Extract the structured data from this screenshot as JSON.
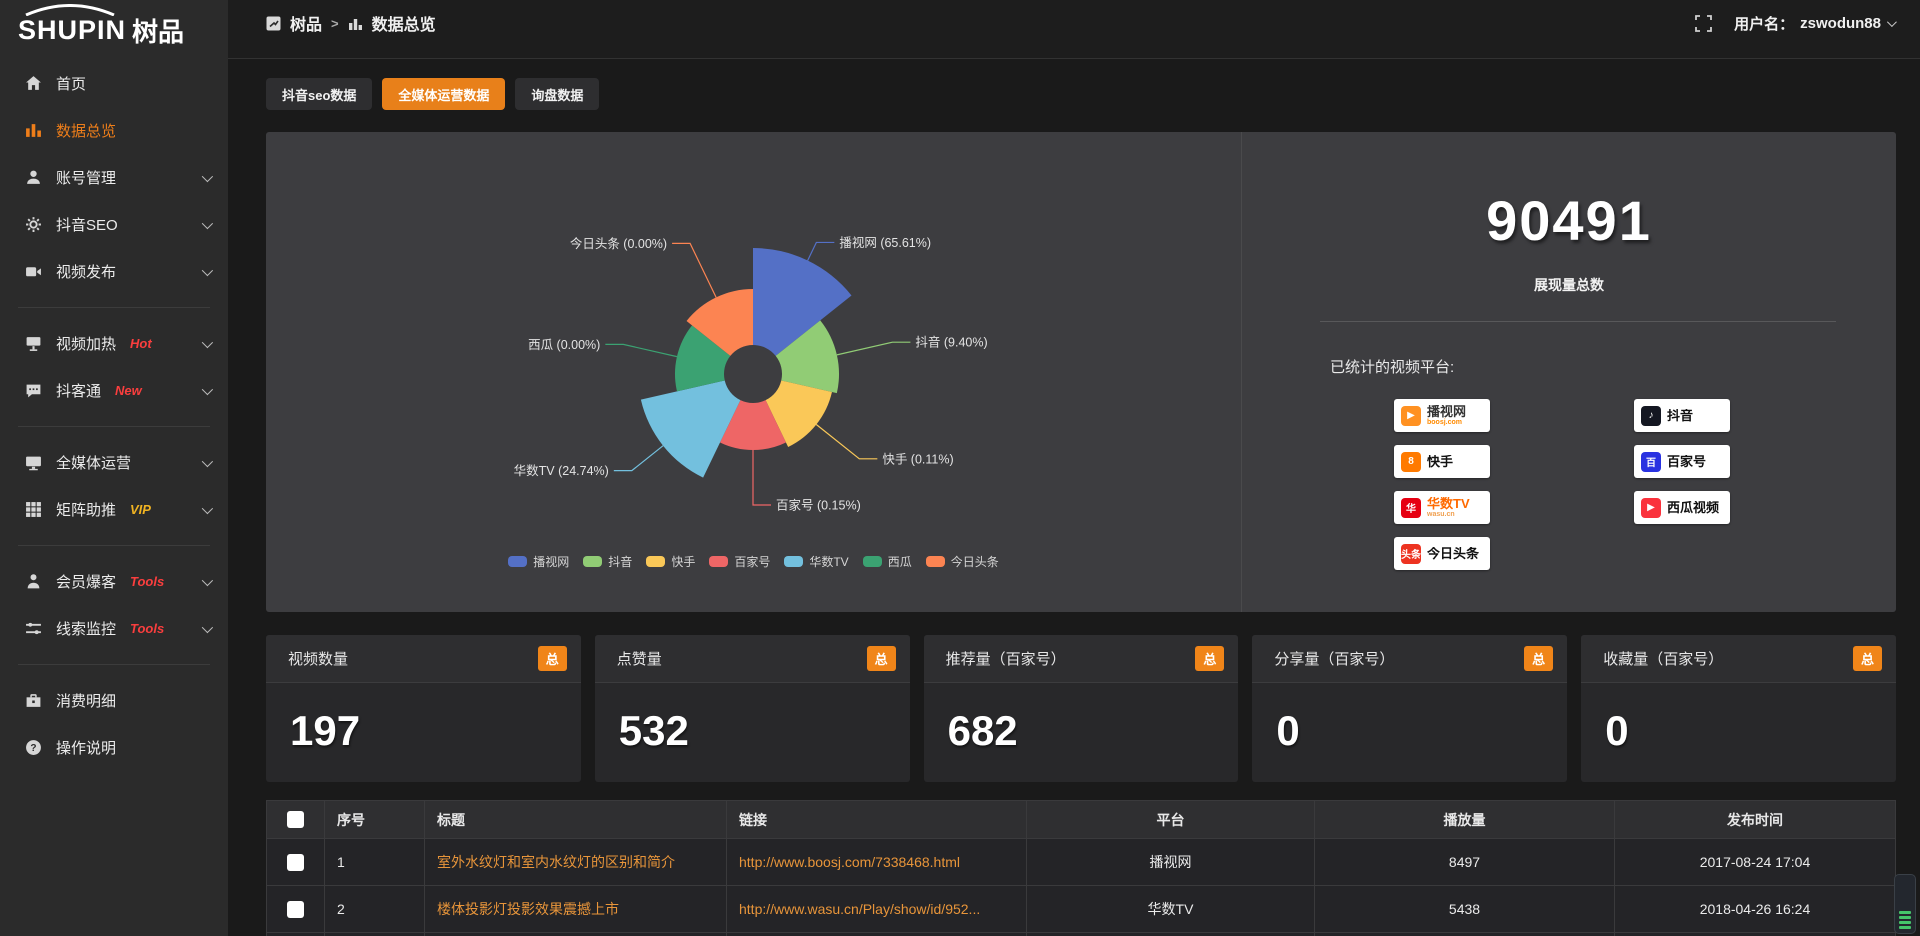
{
  "brand": {
    "name_en": "SHUPIN",
    "name_cn": "树品"
  },
  "topbar": {
    "breadcrumb_home": "树品",
    "breadcrumb_sep": ">",
    "breadcrumb_current": "数据总览",
    "username_label": "用户名：",
    "username": "zswodun88"
  },
  "sidebar": {
    "items": [
      {
        "label": "首页",
        "icon": "home-icon",
        "badge": "",
        "badge_color": ""
      },
      {
        "label": "数据总览",
        "icon": "bar-chart-icon",
        "badge": "",
        "badge_color": ""
      },
      {
        "label": "账号管理",
        "icon": "user-icon",
        "badge": "",
        "badge_color": ""
      },
      {
        "label": "抖音SEO",
        "icon": "gear-icon",
        "badge": "",
        "badge_color": ""
      },
      {
        "label": "视频发布",
        "icon": "video-icon",
        "badge": "",
        "badge_color": ""
      },
      {
        "label": "视频加热",
        "icon": "screen-icon",
        "badge": "Hot",
        "badge_color": "#fa3e3e"
      },
      {
        "label": "抖客通",
        "icon": "chat-icon",
        "badge": "New",
        "badge_color": "#fa3e3e"
      },
      {
        "label": "全媒体运营",
        "icon": "monitor-icon",
        "badge": "",
        "badge_color": ""
      },
      {
        "label": "矩阵助推",
        "icon": "grid-icon",
        "badge": "VIP",
        "badge_color": "#f0b322"
      },
      {
        "label": "会员爆客",
        "icon": "member-icon",
        "badge": "Tools",
        "badge_color": "#fa3e3e"
      },
      {
        "label": "线索监控",
        "icon": "sliders-icon",
        "badge": "Tools",
        "badge_color": "#fa3e3e"
      },
      {
        "label": "消费明细",
        "icon": "wallet-icon",
        "badge": "",
        "badge_color": ""
      },
      {
        "label": "操作说明",
        "icon": "help-icon",
        "badge": "",
        "badge_color": ""
      }
    ]
  },
  "tabs": [
    {
      "label": "抖音seo数据",
      "active": false
    },
    {
      "label": "全媒体运营数据",
      "active": true
    },
    {
      "label": "询盘数据",
      "active": false
    }
  ],
  "chart_data": {
    "type": "pie",
    "variant": "nightingale-rose",
    "labels": [
      "播视网",
      "抖音",
      "快手",
      "百家号",
      "华数TV",
      "西瓜",
      "今日头条"
    ],
    "values_pct": [
      65.61,
      9.4,
      0.11,
      0.15,
      24.74,
      0.0,
      0.0
    ],
    "colors": [
      "#5470c6",
      "#91cc75",
      "#fac858",
      "#ee6666",
      "#73c0de",
      "#3ba272",
      "#fc8452"
    ],
    "legend": [
      "播视网",
      "抖音",
      "快手",
      "百家号",
      "华数TV",
      "西瓜",
      "今日头条"
    ],
    "legend_position": "bottom",
    "label_format": "{name} ({value}%)",
    "equal_angle": true,
    "start_angle_deg": -90,
    "inner_radius_px": 29,
    "radius_px": [
      126,
      86,
      81,
      76,
      115,
      78,
      85
    ],
    "label_line_length": [
      20,
      57,
      55,
      55,
      40,
      55,
      60
    ],
    "label_line_length2": 18
  },
  "summary": {
    "total_value": "90491",
    "total_label": "展现量总数",
    "platforms_title": "已统计的视频平台:",
    "platforms": [
      {
        "name": "播视网",
        "sub": "boosj.com",
        "icon": "boosj-logo",
        "glyph": "▶",
        "icon_bg": "#ff9122",
        "icon_fg": "#ffffff",
        "name_color": "#333333",
        "sub_color": "#ff8a00"
      },
      {
        "name": "抖音",
        "sub": "",
        "icon": "douyin-logo",
        "glyph": "♪",
        "icon_bg": "#141722",
        "icon_fg": "#ffffff",
        "name_color": "#111111",
        "sub_color": "#888888"
      },
      {
        "name": "快手",
        "sub": "",
        "icon": "kuaishou-logo",
        "glyph": "8",
        "icon_bg": "#ff7a00",
        "icon_fg": "#ffffff",
        "name_color": "#111111",
        "sub_color": "#888888"
      },
      {
        "name": "百家号",
        "sub": "",
        "icon": "baijiahao-logo",
        "glyph": "百",
        "icon_bg": "#2932e1",
        "icon_fg": "#ffffff",
        "name_color": "#111111",
        "sub_color": "#888888"
      },
      {
        "name": "华数TV",
        "sub": "wasu.cn",
        "icon": "wasu-logo",
        "glyph": "华",
        "icon_bg": "#e60012",
        "icon_fg": "#ffffff",
        "name_color": "#ff6a00",
        "sub_color": "#f0a050"
      },
      {
        "name": "西瓜视频",
        "sub": "",
        "icon": "xigua-logo",
        "glyph": "▶",
        "icon_bg": "#fa323c",
        "icon_fg": "#ffffff",
        "name_color": "#111111",
        "sub_color": "#888888"
      },
      {
        "name": "今日头条",
        "sub": "",
        "icon": "toutiao-logo",
        "glyph": "头条",
        "icon_bg": "#ed3321",
        "icon_fg": "#ffffff",
        "name_color": "#111111",
        "sub_color": "#888888"
      }
    ]
  },
  "stat_cards": [
    {
      "label": "视频数量",
      "badge": "总",
      "value": "197"
    },
    {
      "label": "点赞量",
      "badge": "总",
      "value": "532"
    },
    {
      "label": "推荐量（百家号）",
      "badge": "总",
      "value": "682"
    },
    {
      "label": "分享量（百家号）",
      "badge": "总",
      "value": "0"
    },
    {
      "label": "收藏量（百家号）",
      "badge": "总",
      "value": "0"
    }
  ],
  "table": {
    "headers": [
      "序号",
      "标题",
      "链接",
      "平台",
      "播放量",
      "发布时间"
    ],
    "rows": [
      {
        "index": "1",
        "title": "室外水纹灯和室内水纹灯的区别和简介",
        "link": "http://www.boosj.com/7338468.html",
        "platform": "播视网",
        "plays": "8497",
        "time": "2017-08-24 17:04"
      },
      {
        "index": "2",
        "title": "楼体投影灯投影效果震撼上市",
        "link": "http://www.wasu.cn/Play/show/id/952...",
        "platform": "华数TV",
        "plays": "5438",
        "time": "2018-04-26 16:24"
      }
    ]
  }
}
